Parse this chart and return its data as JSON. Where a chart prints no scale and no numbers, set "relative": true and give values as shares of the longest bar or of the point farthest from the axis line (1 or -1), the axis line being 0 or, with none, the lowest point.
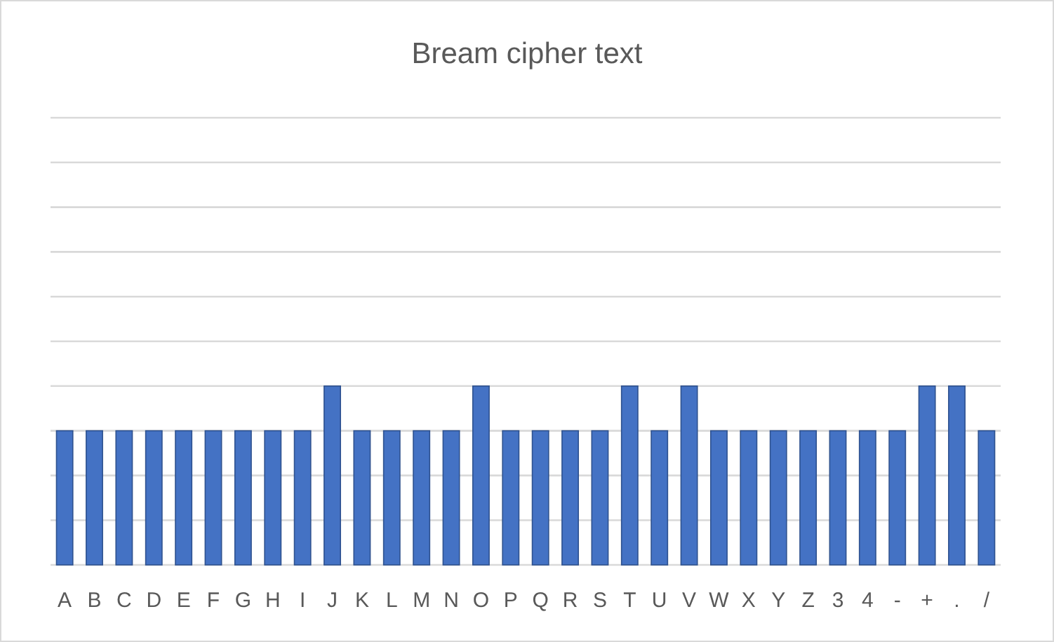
{
  "chart_data": {
    "type": "bar",
    "title": "Bream cipher text",
    "relative": true,
    "grid": true,
    "categories": [
      "A",
      "B",
      "C",
      "D",
      "E",
      "F",
      "G",
      "H",
      "I",
      "J",
      "K",
      "L",
      "M",
      "N",
      "O",
      "P",
      "Q",
      "R",
      "S",
      "T",
      "U",
      "V",
      "W",
      "X",
      "Y",
      "Z",
      "3",
      "4",
      "-",
      "+",
      ".",
      "/"
    ],
    "values": [
      0.75,
      0.75,
      0.75,
      0.75,
      0.75,
      0.75,
      0.75,
      0.75,
      0.75,
      1,
      0.75,
      0.75,
      0.75,
      0.75,
      1,
      0.75,
      0.75,
      0.75,
      0.75,
      1,
      0.75,
      1,
      0.75,
      0.75,
      0.75,
      0.75,
      0.75,
      0.75,
      0.75,
      1,
      1,
      0.75
    ],
    "color": "#4472c4"
  }
}
